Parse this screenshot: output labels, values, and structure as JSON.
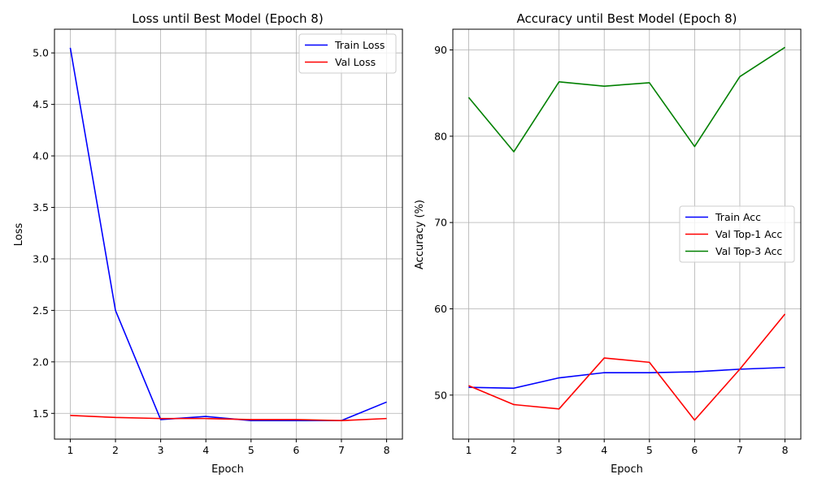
{
  "chart_data": [
    {
      "type": "line",
      "title": "Loss until Best Model (Epoch 8)",
      "xlabel": "Epoch",
      "ylabel": "Loss",
      "x": [
        1,
        2,
        3,
        4,
        5,
        6,
        7,
        8
      ],
      "xticks": [
        "1",
        "2",
        "3",
        "4",
        "5",
        "6",
        "7",
        "8"
      ],
      "yticks": [
        "1.5",
        "2.0",
        "2.5",
        "3.0",
        "3.5",
        "4.0",
        "4.5",
        "5.0"
      ],
      "xlim": [
        0.65,
        8.35
      ],
      "ylim": [
        1.25,
        5.23
      ],
      "grid": true,
      "legend_loc": "upper right",
      "series": [
        {
          "name": "Train Loss",
          "color": "#0000ff",
          "values": [
            5.05,
            2.5,
            1.44,
            1.47,
            1.43,
            1.43,
            1.43,
            1.61
          ]
        },
        {
          "name": "Val Loss",
          "color": "#ff0000",
          "values": [
            1.48,
            1.46,
            1.45,
            1.45,
            1.44,
            1.44,
            1.43,
            1.45
          ]
        }
      ]
    },
    {
      "type": "line",
      "title": "Accuracy until Best Model (Epoch 8)",
      "xlabel": "Epoch",
      "ylabel": "Accuracy (%)",
      "x": [
        1,
        2,
        3,
        4,
        5,
        6,
        7,
        8
      ],
      "xticks": [
        "1",
        "2",
        "3",
        "4",
        "5",
        "6",
        "7",
        "8"
      ],
      "yticks": [
        "50",
        "60",
        "70",
        "80",
        "90"
      ],
      "xlim": [
        0.65,
        8.35
      ],
      "ylim": [
        44.9,
        92.4
      ],
      "grid": true,
      "legend_loc": "center right",
      "series": [
        {
          "name": "Train Acc",
          "color": "#0000ff",
          "values": [
            50.9,
            50.8,
            52.0,
            52.6,
            52.6,
            52.7,
            53.0,
            53.2
          ]
        },
        {
          "name": "Val Top-1 Acc",
          "color": "#ff0000",
          "values": [
            51.1,
            48.9,
            48.4,
            54.3,
            53.8,
            47.1,
            53.0,
            59.4
          ]
        },
        {
          "name": "Val Top-3 Acc",
          "color": "#008000",
          "values": [
            84.5,
            78.2,
            86.3,
            85.8,
            86.2,
            78.8,
            86.9,
            90.3
          ]
        }
      ]
    }
  ]
}
